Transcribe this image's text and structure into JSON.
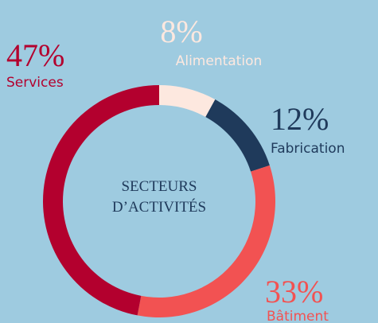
{
  "chart_data": {
    "type": "pie",
    "title": "SECTEURS D’ACTIVITÉS",
    "categories": [
      "Alimentation",
      "Fabrication",
      "Bâtiment",
      "Services"
    ],
    "values": [
      8,
      12,
      33,
      47
    ],
    "value_labels": [
      "8%",
      "12%",
      "33%",
      "47%"
    ],
    "colors": [
      "#fde8df",
      "#1f3a5b",
      "#f25252",
      "#b3002e"
    ],
    "donut": true
  }
}
